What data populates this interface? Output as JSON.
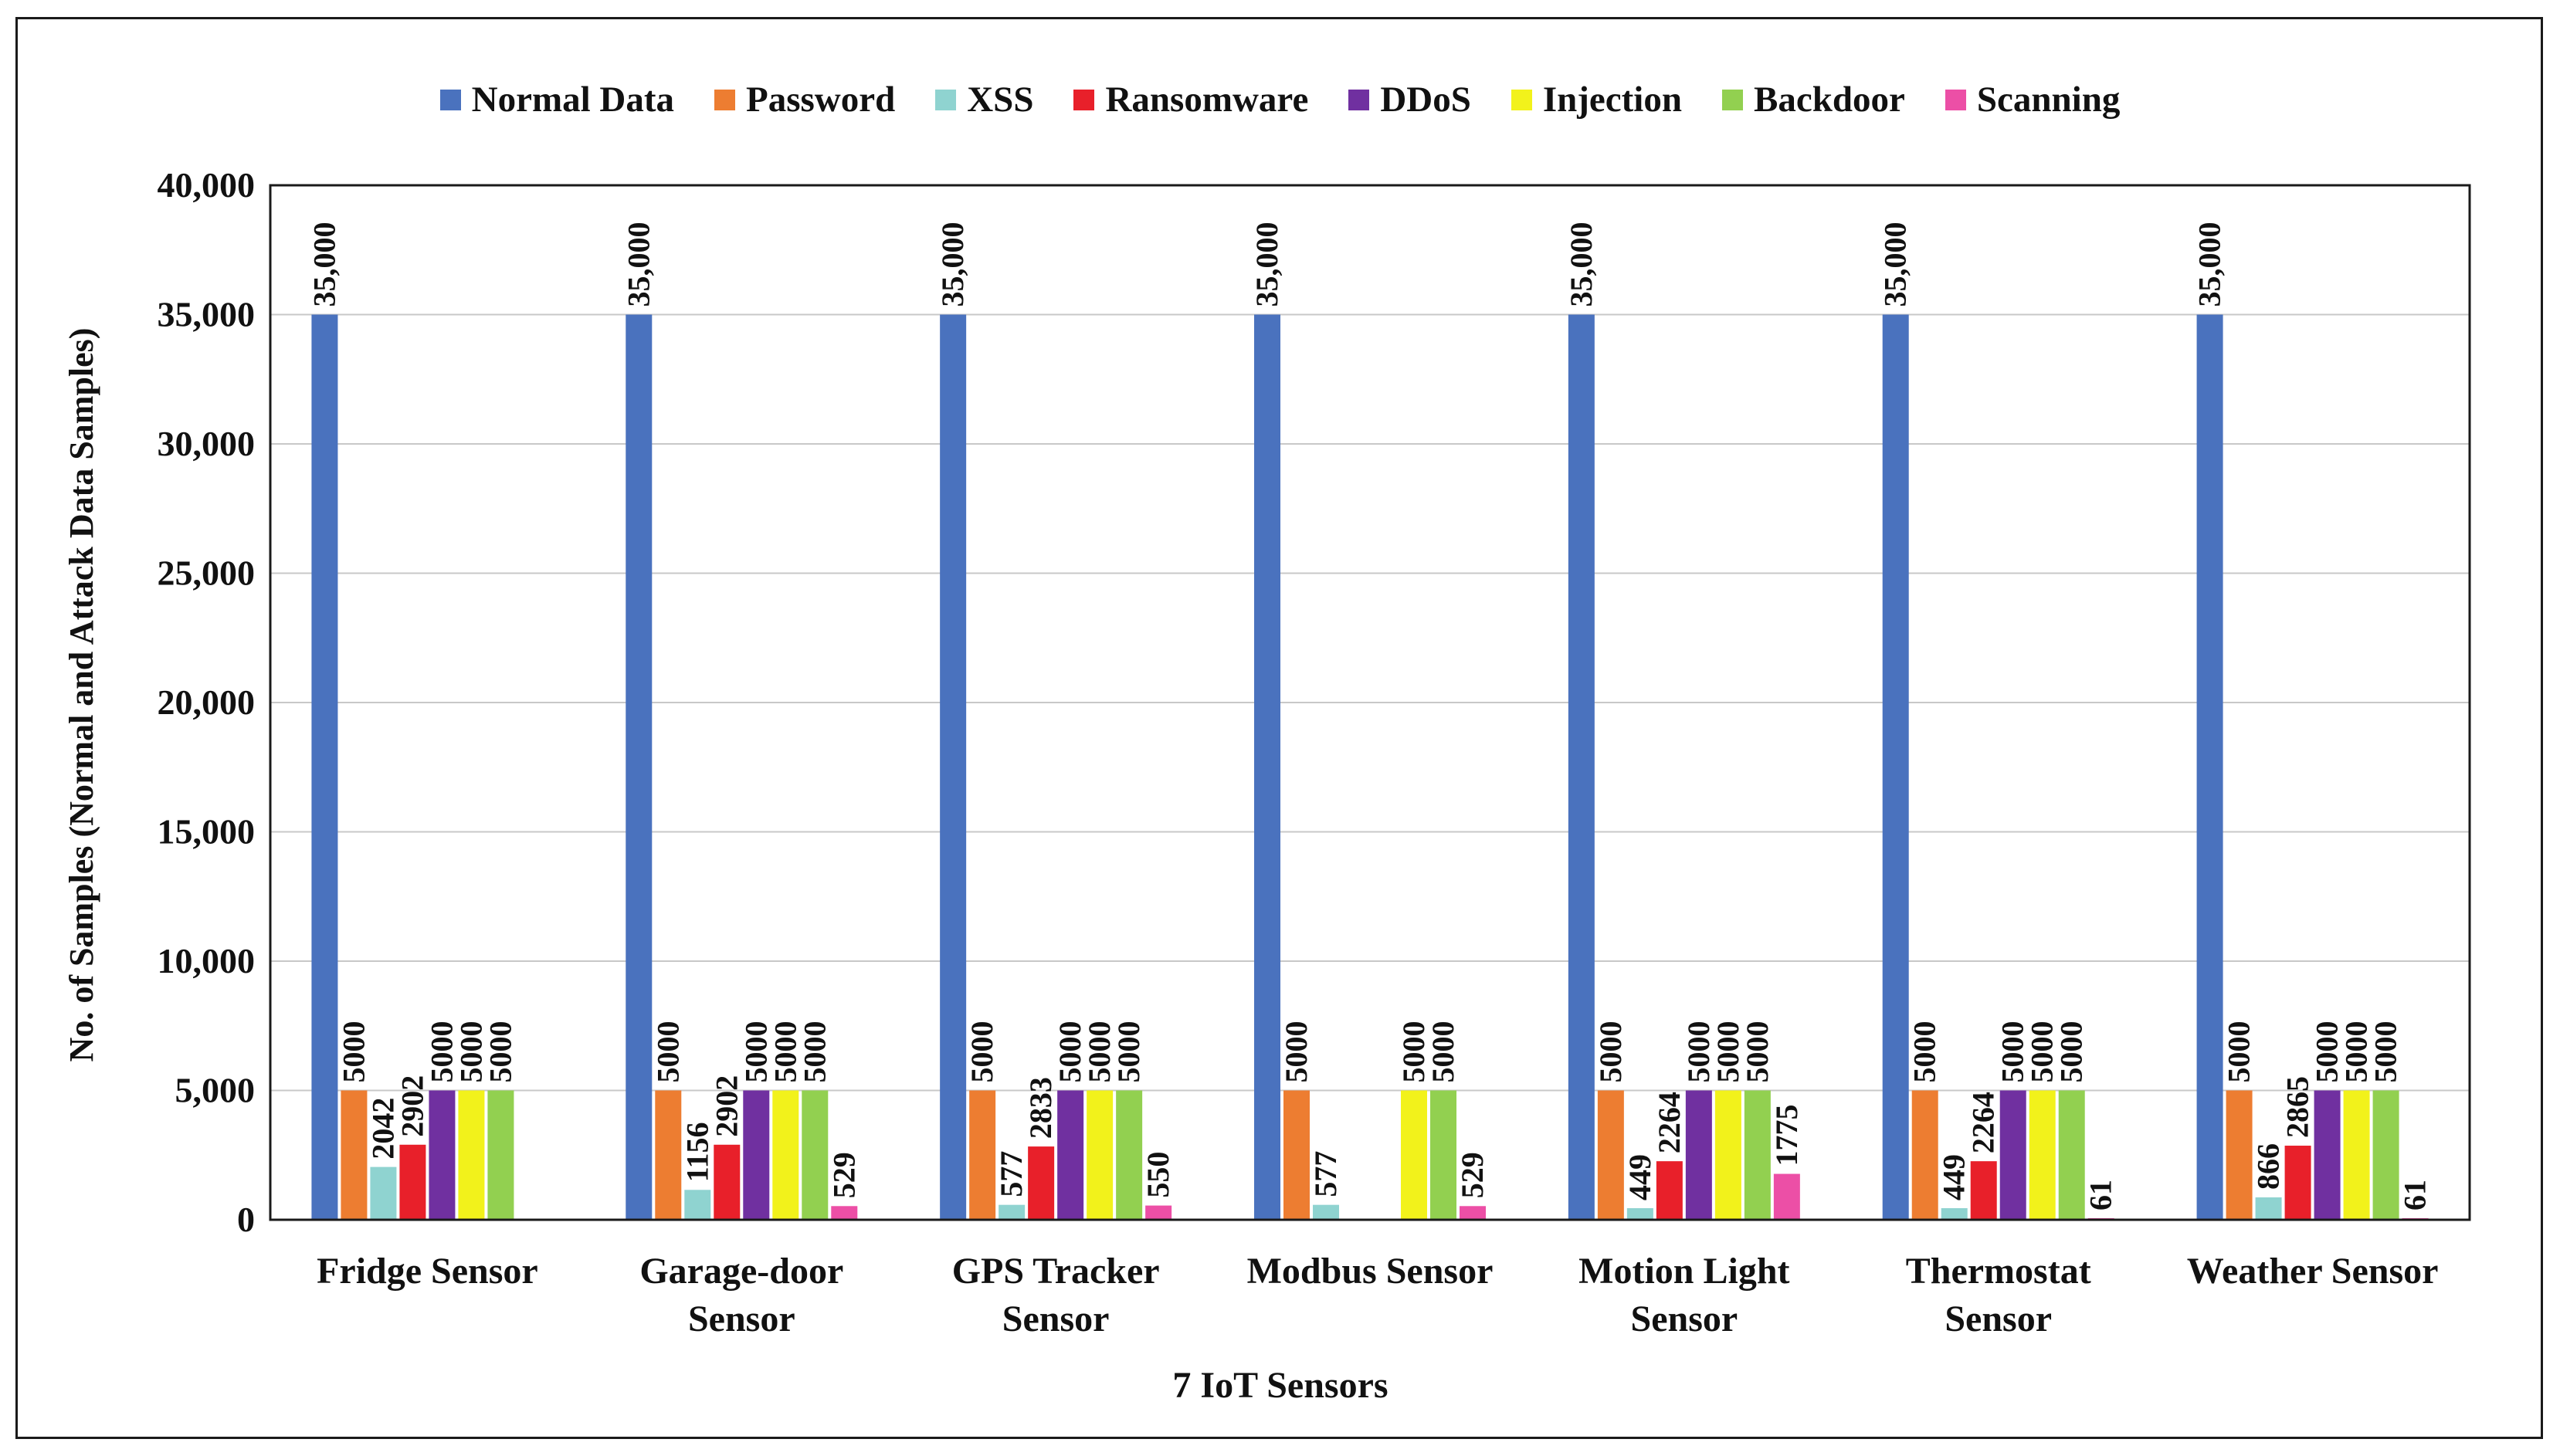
{
  "chart_data": {
    "type": "bar",
    "title": "",
    "xlabel": "7 IoT Sensors",
    "ylabel": "No. of Samples (Normal and Attack Data Samples)",
    "ylim": [
      0,
      40000
    ],
    "yticks": [
      0,
      5000,
      10000,
      15000,
      20000,
      25000,
      30000,
      35000,
      40000
    ],
    "ytick_labels": [
      "0",
      "5,000",
      "10,000",
      "15,000",
      "20,000",
      "25,000",
      "30,000",
      "35,000",
      "40,000"
    ],
    "grid": true,
    "legend_position": "top-center",
    "categories": [
      [
        "Fridge Sensor"
      ],
      [
        "Garage-door",
        "Sensor"
      ],
      [
        "GPS Tracker",
        "Sensor"
      ],
      [
        "Modbus Sensor"
      ],
      [
        "Motion Light",
        "Sensor"
      ],
      [
        "Thermostat",
        "Sensor"
      ],
      [
        "Weather Sensor"
      ]
    ],
    "series": [
      {
        "name": "Normal Data",
        "color": "#4A72BE",
        "values": [
          35000,
          35000,
          35000,
          35000,
          35000,
          35000,
          35000
        ],
        "labels": [
          "35,000",
          "35,000",
          "35,000",
          "35,000",
          "35,000",
          "35,000",
          "35,000"
        ]
      },
      {
        "name": "Password",
        "color": "#ED7D31",
        "values": [
          5000,
          5000,
          5000,
          5000,
          5000,
          5000,
          5000
        ],
        "labels": [
          "5000",
          "5000",
          "5000",
          "5000",
          "5000",
          "5000",
          "5000"
        ]
      },
      {
        "name": "XSS",
        "color": "#8FD3D0",
        "values": [
          2042,
          1156,
          577,
          577,
          449,
          449,
          866
        ],
        "labels": [
          "2042",
          "1156",
          "577",
          "577",
          "449",
          "449",
          "866"
        ]
      },
      {
        "name": "Ransomware",
        "color": "#E8202A",
        "values": [
          2902,
          2902,
          2833,
          null,
          2264,
          2264,
          2865
        ],
        "labels": [
          "2902",
          "2902",
          "2833",
          null,
          "2264",
          "2264",
          "2865"
        ]
      },
      {
        "name": "DDoS",
        "color": "#7030A0",
        "values": [
          5000,
          5000,
          5000,
          null,
          5000,
          5000,
          5000
        ],
        "labels": [
          "5000",
          "5000",
          "5000",
          null,
          "5000",
          "5000",
          "5000"
        ]
      },
      {
        "name": "Injection",
        "color": "#F2F21B",
        "values": [
          5000,
          5000,
          5000,
          5000,
          5000,
          5000,
          5000
        ],
        "labels": [
          "5000",
          "5000",
          "5000",
          "5000",
          "5000",
          "5000",
          "5000"
        ]
      },
      {
        "name": "Backdoor",
        "color": "#92D050",
        "values": [
          5000,
          5000,
          5000,
          5000,
          5000,
          5000,
          5000
        ],
        "labels": [
          "5000",
          "5000",
          "5000",
          "5000",
          "5000",
          "5000",
          "5000"
        ]
      },
      {
        "name": "Scanning",
        "color": "#EC4FA6",
        "values": [
          null,
          529,
          550,
          529,
          1775,
          61,
          61
        ],
        "labels": [
          null,
          "529",
          "550",
          "529",
          "1775",
          "61",
          "61"
        ]
      }
    ]
  }
}
